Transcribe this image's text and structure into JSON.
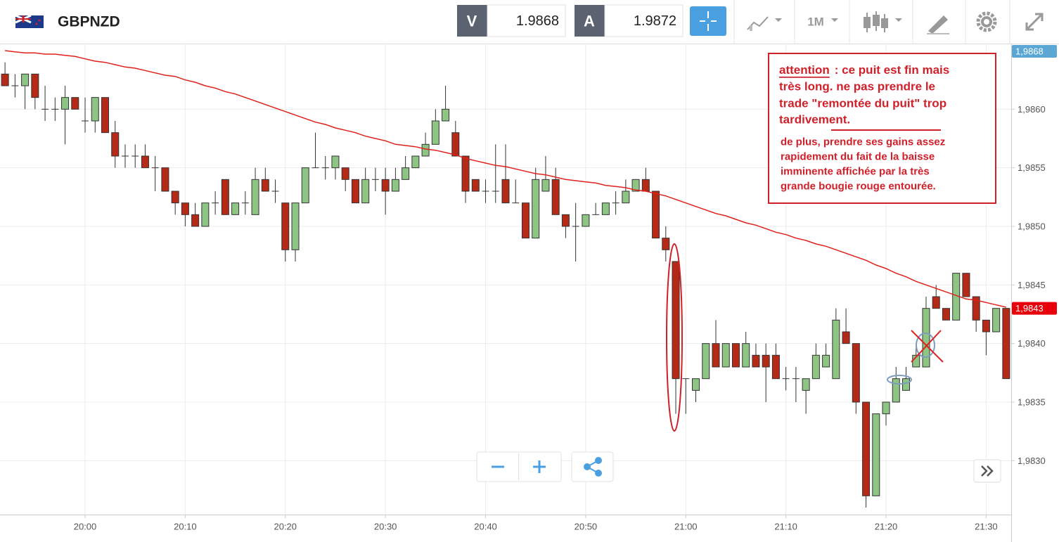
{
  "header": {
    "symbol": "GBPNZD",
    "sell_label": "V",
    "sell_price": "1.9868",
    "buy_label": "A",
    "buy_price": "1.9872",
    "timeframe": "1M"
  },
  "chart_data": {
    "type": "candlestick",
    "categories": [
      null,
      null,
      null,
      null,
      null,
      null,
      null,
      null,
      "20:00",
      null,
      null,
      null,
      null,
      null,
      null,
      null,
      null,
      null,
      "20:10",
      null,
      null,
      null,
      null,
      null,
      null,
      null,
      null,
      null,
      "20:20",
      null,
      null,
      null,
      null,
      null,
      null,
      null,
      null,
      null,
      "20:30",
      null,
      null,
      null,
      null,
      null,
      null,
      null,
      null,
      null,
      "20:40",
      null,
      null,
      null,
      null,
      null,
      null,
      null,
      null,
      null,
      "20:50",
      null,
      null,
      null,
      null,
      null,
      null,
      null,
      null,
      null,
      "21:00",
      null,
      null,
      null,
      null,
      null,
      null,
      null,
      null,
      null,
      "21:10",
      null,
      null,
      null,
      null,
      null,
      null,
      null,
      null,
      null,
      "21:20",
      null,
      null,
      null,
      null,
      null,
      null,
      null,
      null,
      null,
      "21:30",
      null,
      null
    ],
    "open": [
      1.9863,
      1.9862,
      1.9862,
      1.9863,
      1.986,
      1.986,
      1.986,
      1.9861,
      1.9859,
      1.9859,
      1.9861,
      1.9858,
      1.9856,
      1.9856,
      1.9856,
      1.9855,
      1.9855,
      1.9853,
      1.9852,
      1.9851,
      1.985,
      1.9852,
      1.9854,
      1.9851,
      1.9852,
      1.9851,
      1.9854,
      1.9853,
      1.9852,
      1.9848,
      1.9852,
      1.9855,
      1.9855,
      1.9855,
      1.9855,
      1.9854,
      1.9852,
      1.9854,
      1.9854,
      1.9853,
      1.9854,
      1.9855,
      1.9856,
      1.9857,
      1.9859,
      1.9858,
      1.9856,
      1.9854,
      1.9853,
      1.9853,
      1.9854,
      1.9852,
      1.9852,
      1.9849,
      1.9853,
      1.9854,
      1.9851,
      1.985,
      1.985,
      1.9851,
      1.9851,
      1.9852,
      1.9852,
      1.9853,
      1.9854,
      1.9853,
      1.9849,
      1.9847,
      1.9837,
      1.9836,
      1.9837,
      1.984,
      1.9838,
      1.984,
      1.9838,
      1.9839,
      1.9839,
      1.9839,
      1.9837,
      1.9837,
      1.9836,
      1.9837,
      1.9838,
      1.9837,
      1.9841,
      1.984,
      1.9835,
      1.9827,
      1.9834,
      1.9835,
      1.9836,
      1.9838,
      1.9838,
      1.9844,
      1.9843,
      1.9842,
      1.9846,
      1.9844,
      1.9842,
      1.9841,
      1.9843
    ],
    "high": [
      1.9864,
      1.9863,
      1.9863,
      1.9863,
      1.9862,
      1.9861,
      1.9862,
      1.9861,
      1.9861,
      1.9861,
      1.9861,
      1.9859,
      1.9857,
      1.9857,
      1.9857,
      1.9856,
      1.9855,
      1.9853,
      1.9852,
      1.9852,
      1.9852,
      1.9853,
      1.9854,
      1.9852,
      1.9853,
      1.9855,
      1.9855,
      1.9854,
      1.9852,
      1.9852,
      1.9855,
      1.9858,
      1.9856,
      1.9856,
      1.9855,
      1.9854,
      1.9855,
      1.9855,
      1.9855,
      1.9855,
      1.9856,
      1.9856,
      1.9858,
      1.986,
      1.9862,
      1.9859,
      1.9856,
      1.9854,
      1.9854,
      1.9857,
      1.9857,
      1.9854,
      1.9852,
      1.9855,
      1.9856,
      1.9855,
      1.9851,
      1.9852,
      1.9851,
      1.9852,
      1.9852,
      1.9853,
      1.9854,
      1.9854,
      1.9855,
      1.9853,
      1.985,
      1.9847,
      1.9837,
      1.9837,
      1.984,
      1.9842,
      1.984,
      1.984,
      1.9841,
      1.984,
      1.984,
      1.984,
      1.9838,
      1.9838,
      1.9837,
      1.984,
      1.984,
      1.9843,
      1.9843,
      1.984,
      1.9835,
      1.9834,
      1.9835,
      1.9838,
      1.9838,
      1.984,
      1.9844,
      1.9845,
      1.9843,
      1.9846,
      1.9846,
      1.9844,
      1.9842,
      1.9843,
      1.9843
    ],
    "low": [
      1.9862,
      1.9861,
      1.986,
      1.986,
      1.9859,
      1.9859,
      1.9857,
      1.986,
      1.9858,
      1.9858,
      1.9858,
      1.9855,
      1.9855,
      1.9855,
      1.9855,
      1.9853,
      1.9853,
      1.9851,
      1.985,
      1.985,
      1.985,
      1.9851,
      1.9851,
      1.9851,
      1.9851,
      1.9851,
      1.9853,
      1.9852,
      1.9847,
      1.9847,
      1.9852,
      1.9855,
      1.9854,
      1.9854,
      1.9853,
      1.9852,
      1.9852,
      1.9853,
      1.9851,
      1.9853,
      1.9854,
      1.9855,
      1.9856,
      1.9857,
      1.9859,
      1.9856,
      1.9852,
      1.9853,
      1.9852,
      1.9852,
      1.9852,
      1.9852,
      1.9849,
      1.9849,
      1.9853,
      1.9851,
      1.9849,
      1.9847,
      1.985,
      1.9851,
      1.9851,
      1.9851,
      1.9852,
      1.9853,
      1.9853,
      1.9849,
      1.9847,
      1.9834,
      1.9834,
      1.9835,
      1.9837,
      1.9838,
      1.9838,
      1.9838,
      1.9838,
      1.9838,
      1.9835,
      1.9837,
      1.9836,
      1.9835,
      1.9834,
      1.9837,
      1.9838,
      1.9837,
      1.984,
      1.9834,
      1.9826,
      1.9827,
      1.9833,
      1.9835,
      1.9836,
      1.9838,
      1.9838,
      1.9843,
      1.9842,
      1.9842,
      1.9844,
      1.9841,
      1.9839,
      1.9841,
      1.9837
    ],
    "close": [
      1.9862,
      1.9862,
      1.9863,
      1.9861,
      1.986,
      1.986,
      1.9861,
      1.986,
      1.9859,
      1.9861,
      1.9858,
      1.9856,
      1.9856,
      1.9856,
      1.9855,
      1.9855,
      1.9853,
      1.9852,
      1.9851,
      1.985,
      1.9852,
      1.9852,
      1.9851,
      1.9852,
      1.9852,
      1.9854,
      1.9853,
      1.9853,
      1.9848,
      1.9852,
      1.9855,
      1.9855,
      1.9855,
      1.9856,
      1.9854,
      1.9852,
      1.9854,
      1.9854,
      1.9853,
      1.9854,
      1.9855,
      1.9856,
      1.9857,
      1.9859,
      1.986,
      1.9856,
      1.9853,
      1.9853,
      1.9853,
      1.9853,
      1.9852,
      1.9852,
      1.9849,
      1.9854,
      1.9854,
      1.9851,
      1.985,
      1.985,
      1.9851,
      1.9851,
      1.9852,
      1.9852,
      1.9853,
      1.9854,
      1.9853,
      1.9849,
      1.9848,
      1.9837,
      1.9837,
      1.9837,
      1.984,
      1.9838,
      1.984,
      1.9838,
      1.984,
      1.9838,
      1.9838,
      1.9837,
      1.9837,
      1.9837,
      1.9837,
      1.9839,
      1.9839,
      1.9842,
      1.984,
      1.9835,
      1.9827,
      1.9834,
      1.9835,
      1.9837,
      1.9837,
      1.9839,
      1.9843,
      1.9843,
      1.9842,
      1.9846,
      1.9844,
      1.9842,
      1.9841,
      1.9843,
      1.9837
    ],
    "up_color": "#8ec585",
    "down_color": "#b52a17",
    "line": {
      "color": "#e0201b",
      "values": [
        1.9865,
        1.98649,
        1.98648,
        1.98648,
        1.98647,
        1.98647,
        1.98646,
        1.98645,
        1.98643,
        1.98641,
        1.9864,
        1.98638,
        1.98636,
        1.98635,
        1.98633,
        1.98631,
        1.98629,
        1.98628,
        1.98625,
        1.98623,
        1.9862,
        1.98618,
        1.98615,
        1.98613,
        1.9861,
        1.98607,
        1.98604,
        1.98601,
        1.98598,
        1.98595,
        1.98592,
        1.98589,
        1.98587,
        1.98584,
        1.98582,
        1.9858,
        1.98577,
        1.98575,
        1.98573,
        1.9857,
        1.98569,
        1.98568,
        1.98566,
        1.98565,
        1.98563,
        1.98561,
        1.98558,
        1.98556,
        1.98554,
        1.98552,
        1.98551,
        1.98549,
        1.98547,
        1.98545,
        1.98544,
        1.98542,
        1.9854,
        1.98539,
        1.98538,
        1.98537,
        1.98535,
        1.98534,
        1.98533,
        1.98531,
        1.9853,
        1.98528,
        1.98526,
        1.98523,
        1.9852,
        1.98517,
        1.98514,
        1.98511,
        1.98509,
        1.98506,
        1.98503,
        1.98501,
        1.98498,
        1.98495,
        1.98493,
        1.9849,
        1.98488,
        1.98485,
        1.98483,
        1.9848,
        1.98477,
        1.98474,
        1.98471,
        1.98467,
        1.98464,
        1.9846,
        1.98457,
        1.98453,
        1.9845,
        1.98447,
        1.98444,
        1.98441,
        1.98438,
        1.98437,
        1.98435,
        1.98433,
        1.98431
      ]
    },
    "ylim": [
      1.98254,
      1.98656
    ],
    "yticks": [
      {
        "value": 1.986,
        "label": "1,9860"
      },
      {
        "value": 1.9855,
        "label": "1,9855"
      },
      {
        "value": 1.985,
        "label": "1,9850"
      },
      {
        "value": 1.9845,
        "label": "1,9845"
      },
      {
        "value": 1.984,
        "label": "1,9840"
      },
      {
        "value": 1.9835,
        "label": "1,9835"
      },
      {
        "value": 1.983,
        "label": "1,9830"
      }
    ],
    "grid": true,
    "price_markers": [
      {
        "value": 1.9868,
        "label": "1,9868",
        "color": "#5aa7d6"
      },
      {
        "value": 1.9843,
        "label": "1,9843",
        "color": "#e8000b"
      }
    ],
    "annotation": {
      "heading": "attention",
      "lines": [
        ": ce puit est fin mais",
        "très long. ne pas prendre le",
        "trade \"remontée du puit\" trop",
        "tardivement."
      ],
      "note_lines": [
        "de plus, prendre ses gains assez",
        "rapidement du fait de la baisse",
        "imminente affichée par la très",
        "grande bougie rouge entourée."
      ]
    }
  }
}
